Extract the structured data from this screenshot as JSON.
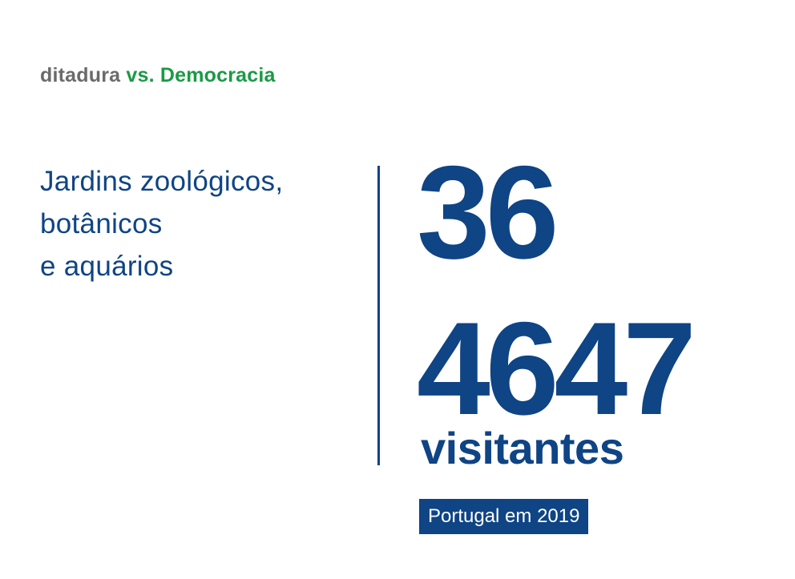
{
  "header": {
    "part1": "ditadura",
    "part2": "vs. Democracia",
    "color_part1": "#6b6b6b",
    "color_part2": "#1a9a45"
  },
  "subject": {
    "lines": [
      "Jardins zoológicos,",
      "botânicos",
      "e aquários"
    ]
  },
  "stats": {
    "count": "36",
    "visitors": "4647",
    "visitors_label": "visitantes"
  },
  "source": {
    "label": "Portugal em 2019"
  },
  "colors": {
    "primary": "#0f4485",
    "background": "#ffffff"
  }
}
